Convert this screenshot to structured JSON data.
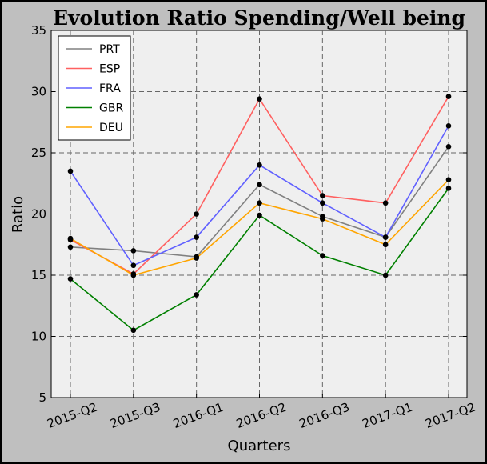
{
  "chart_data": {
    "type": "line",
    "title": "Evolution Ratio Spending/Well being",
    "xlabel": "Quarters",
    "ylabel": "Ratio",
    "categories": [
      "2015-Q2",
      "2015-Q3",
      "2016-Q1",
      "2016-Q2",
      "2016-Q3",
      "2017-Q1",
      "2017-Q2"
    ],
    "ylim": [
      5,
      35
    ],
    "yticks": [
      5,
      10,
      15,
      20,
      25,
      30,
      35
    ],
    "grid": true,
    "legend_position": "top-left",
    "series": [
      {
        "name": "PRT",
        "color": "#808080",
        "values": [
          17.3,
          17.0,
          16.5,
          22.4,
          19.8,
          18.1,
          25.5
        ]
      },
      {
        "name": "ESP",
        "color": "#ff6060",
        "values": [
          17.9,
          15.1,
          20.0,
          29.4,
          21.5,
          20.9,
          29.6
        ]
      },
      {
        "name": "FRA",
        "color": "#6060ff",
        "values": [
          23.5,
          15.8,
          18.1,
          24.0,
          20.9,
          18.1,
          27.2
        ]
      },
      {
        "name": "GBR",
        "color": "#008000",
        "values": [
          14.7,
          10.5,
          13.4,
          19.9,
          16.6,
          15.0,
          22.1
        ]
      },
      {
        "name": "DEU",
        "color": "#ffa500",
        "values": [
          18.0,
          15.0,
          16.4,
          20.9,
          19.6,
          17.5,
          22.8
        ]
      }
    ]
  }
}
